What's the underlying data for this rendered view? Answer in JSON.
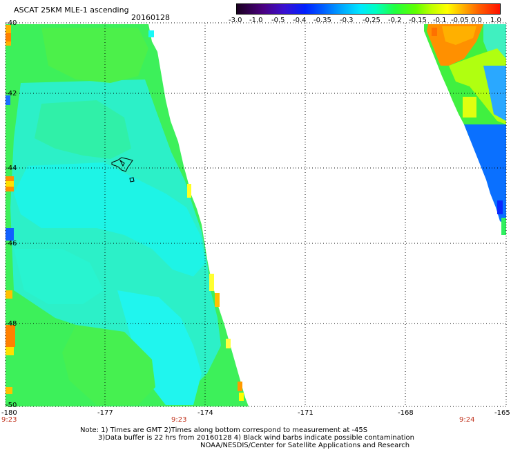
{
  "header": {
    "title": "ASCAT 25KM MLE-1 ascending",
    "date": "20160128"
  },
  "colorbar": {
    "labels": [
      "-3.0",
      "-1.0",
      "-0.5",
      "-0.4",
      "-0.35",
      "-0.3",
      "-0.25",
      "-0.2",
      "-0.15",
      "-0.1",
      "-0.05",
      "0.0",
      "1.0"
    ],
    "colors": [
      "#1a0020",
      "#4a0080",
      "#3a10d0",
      "#0020ff",
      "#0060ff",
      "#00a8ff",
      "#00e8ff",
      "#00ffc0",
      "#20ff40",
      "#a0ff00",
      "#ffff00",
      "#ff8000",
      "#ff2000"
    ]
  },
  "map": {
    "lat_labels": [
      "-40",
      "-42",
      "-44",
      "-46",
      "-48",
      "-50"
    ],
    "lon_labels": [
      "-180",
      "-177",
      "-174",
      "-171",
      "-168",
      "-165"
    ],
    "time_labels": [
      "9:23",
      "9:23",
      "9:24"
    ]
  },
  "footer": {
    "line1": "Note: 1) Times are GMT 2)Times along bottom correspond to measurement at -45S",
    "line2": "3)Data buffer is 22 hrs from 20160128 4) Black wind barbs indicate possible contamination",
    "line3": "NOAA/NESDIS/Center for Satellite Applications and Research"
  }
}
